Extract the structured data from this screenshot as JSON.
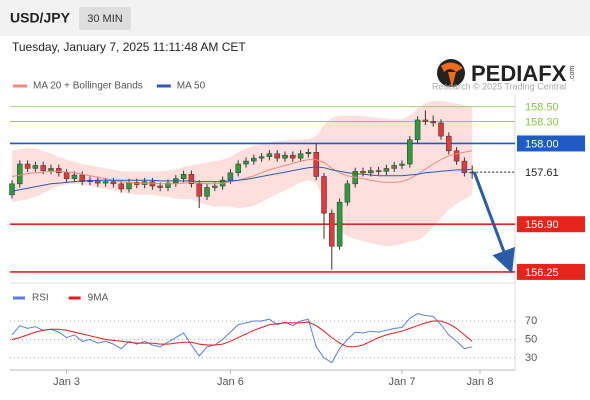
{
  "header": {
    "symbol": "USD/JPY",
    "interval": "30 MIN",
    "timestamp": "Tuesday, January 7, 2025 11:11:48 AM CET"
  },
  "branding": {
    "logo": "PEDIAFX",
    "logo_suffix": ".com",
    "credit": "Research © 2025 Trading Central"
  },
  "chart_data": [
    {
      "type": "candlestick",
      "up_color": "#2e9a3c",
      "down_color": "#e23a3a",
      "ylim": [
        156.14,
        158.66
      ],
      "open": [
        157.3,
        157.45,
        157.72,
        157.66,
        157.7,
        157.63,
        157.66,
        157.6,
        157.52,
        157.57,
        157.48,
        157.5,
        157.46,
        157.48,
        157.45,
        157.38,
        157.47,
        157.44,
        157.48,
        157.42,
        157.4,
        157.46,
        157.52,
        157.58,
        157.45,
        157.28,
        157.4,
        157.42,
        157.5,
        157.6,
        157.72,
        157.76,
        157.8,
        157.82,
        157.86,
        157.8,
        157.84,
        157.8,
        157.86,
        157.88,
        157.55,
        157.05,
        156.6,
        157.2,
        157.45,
        157.62,
        157.6,
        157.63,
        157.62,
        157.66,
        157.7,
        157.72,
        158.05,
        158.32,
        158.3,
        158.28,
        158.1,
        157.9,
        157.76,
        157.6,
        null
      ],
      "high": [
        157.5,
        157.77,
        157.77,
        157.75,
        157.75,
        157.71,
        157.71,
        157.65,
        157.62,
        157.62,
        157.55,
        157.55,
        157.53,
        157.53,
        157.5,
        157.52,
        157.52,
        157.53,
        157.53,
        157.47,
        157.51,
        157.57,
        157.63,
        157.63,
        157.5,
        157.45,
        157.47,
        157.55,
        157.65,
        157.77,
        157.81,
        157.85,
        157.87,
        157.91,
        157.91,
        157.89,
        157.89,
        157.91,
        157.93,
        158.0,
        157.6,
        157.1,
        157.25,
        157.5,
        157.67,
        157.67,
        157.68,
        157.68,
        157.71,
        157.75,
        157.77,
        158.1,
        158.37,
        158.45,
        158.38,
        158.33,
        158.15,
        157.95,
        157.81,
        157.7,
        null
      ],
      "low": [
        157.25,
        157.4,
        157.61,
        157.61,
        157.58,
        157.58,
        157.55,
        157.47,
        157.47,
        157.43,
        157.43,
        157.41,
        157.41,
        157.4,
        157.33,
        157.33,
        157.39,
        157.39,
        157.37,
        157.35,
        157.35,
        157.41,
        157.47,
        157.4,
        157.12,
        157.23,
        157.35,
        157.37,
        157.45,
        157.55,
        157.67,
        157.71,
        157.75,
        157.77,
        157.75,
        157.75,
        157.75,
        157.75,
        157.81,
        157.5,
        156.7,
        156.28,
        156.55,
        157.15,
        157.4,
        157.55,
        157.55,
        157.57,
        157.57,
        157.61,
        157.65,
        157.67,
        158.0,
        158.25,
        158.23,
        158.05,
        157.85,
        157.71,
        157.55,
        157.52,
        null
      ],
      "close": [
        157.45,
        157.72,
        157.66,
        157.7,
        157.63,
        157.66,
        157.6,
        157.52,
        157.57,
        157.48,
        157.5,
        157.46,
        157.48,
        157.45,
        157.38,
        157.47,
        157.44,
        157.48,
        157.42,
        157.4,
        157.46,
        157.52,
        157.58,
        157.45,
        157.28,
        157.4,
        157.42,
        157.5,
        157.6,
        157.72,
        157.76,
        157.8,
        157.82,
        157.86,
        157.8,
        157.84,
        157.8,
        157.86,
        157.88,
        157.55,
        157.05,
        156.6,
        157.2,
        157.45,
        157.62,
        157.6,
        157.63,
        157.62,
        157.66,
        157.7,
        157.72,
        158.05,
        158.32,
        158.3,
        158.28,
        158.1,
        157.9,
        157.76,
        157.6,
        157.61,
        null
      ],
      "series": [
        {
          "name": "MA 20 + Bollinger Bands",
          "color": "#f08a80",
          "band_color": "#fde0de",
          "values": [
            157.55,
            157.57,
            157.59,
            157.6,
            157.61,
            157.62,
            157.62,
            157.61,
            157.6,
            157.58,
            157.56,
            157.54,
            157.52,
            157.5,
            157.48,
            157.47,
            157.46,
            157.46,
            157.46,
            157.45,
            157.45,
            157.45,
            157.46,
            157.47,
            157.46,
            157.45,
            157.45,
            157.46,
            157.48,
            157.5,
            157.53,
            157.56,
            157.6,
            157.64,
            157.67,
            157.7,
            157.73,
            157.76,
            157.78,
            157.78,
            157.74,
            157.66,
            157.6,
            157.56,
            157.54,
            157.52,
            157.5,
            157.48,
            157.47,
            157.47,
            157.48,
            157.52,
            157.58,
            157.65,
            157.72,
            157.78,
            157.83,
            157.86,
            157.88,
            157.9,
            null
          ],
          "upper": [
            157.9,
            157.92,
            157.94,
            157.93,
            157.9,
            157.86,
            157.82,
            157.78,
            157.75,
            157.72,
            157.7,
            157.68,
            157.66,
            157.64,
            157.62,
            157.62,
            157.62,
            157.62,
            157.62,
            157.62,
            157.63,
            157.65,
            157.68,
            157.7,
            157.72,
            157.74,
            157.76,
            157.78,
            157.82,
            157.88,
            157.93,
            157.97,
            158.0,
            158.02,
            158.03,
            158.04,
            158.05,
            158.05,
            158.06,
            158.1,
            158.25,
            158.35,
            158.38,
            158.38,
            158.38,
            158.37,
            158.36,
            158.35,
            158.34,
            158.33,
            158.33,
            158.38,
            158.48,
            158.55,
            158.58,
            158.58,
            158.56,
            158.54,
            158.52,
            158.5,
            null
          ],
          "lower": [
            157.2,
            157.22,
            157.24,
            157.27,
            157.32,
            157.38,
            157.42,
            157.44,
            157.45,
            157.44,
            157.42,
            157.4,
            157.38,
            157.36,
            157.34,
            157.32,
            157.3,
            157.3,
            157.3,
            157.28,
            157.27,
            157.25,
            157.24,
            157.24,
            157.2,
            157.16,
            157.14,
            157.14,
            157.14,
            157.12,
            157.13,
            157.15,
            157.2,
            157.26,
            157.31,
            157.36,
            157.41,
            157.47,
            157.5,
            157.46,
            157.23,
            156.97,
            156.82,
            156.74,
            156.7,
            156.67,
            156.64,
            156.62,
            156.6,
            156.61,
            156.63,
            156.66,
            156.68,
            156.75,
            156.86,
            156.98,
            157.1,
            157.18,
            157.24,
            157.3,
            null
          ]
        },
        {
          "name": "MA 50",
          "color": "#2b5ca8",
          "values": [
            157.35,
            157.37,
            157.39,
            157.41,
            157.43,
            157.45,
            157.46,
            157.47,
            157.48,
            157.49,
            157.49,
            157.5,
            157.5,
            157.5,
            157.5,
            157.5,
            157.5,
            157.5,
            157.5,
            157.49,
            157.49,
            157.49,
            157.49,
            157.49,
            157.48,
            157.48,
            157.48,
            157.48,
            157.49,
            157.5,
            157.51,
            157.53,
            157.55,
            157.57,
            157.59,
            157.61,
            157.63,
            157.65,
            157.67,
            157.68,
            157.67,
            157.64,
            157.62,
            157.6,
            157.59,
            157.58,
            157.57,
            157.56,
            157.56,
            157.56,
            157.56,
            157.57,
            157.58,
            157.6,
            157.61,
            157.62,
            157.63,
            157.64,
            157.64,
            157.65,
            null
          ]
        }
      ],
      "levels": [
        {
          "value": 158.5,
          "label": "158.50",
          "color": "#8bc34a",
          "kind": "text"
        },
        {
          "value": 158.3,
          "label": "158.30",
          "color": "#8bc34a",
          "kind": "text"
        },
        {
          "value": 158.0,
          "label": "158.00",
          "color": "#1e5bc6",
          "kind": "box"
        },
        {
          "value": 157.61,
          "label": "157.61",
          "color": "#222222",
          "kind": "dotted"
        },
        {
          "value": 156.9,
          "label": "156.90",
          "color": "#e8231b",
          "kind": "box"
        },
        {
          "value": 156.25,
          "label": "156.25",
          "color": "#e8231b",
          "kind": "box"
        }
      ],
      "projection": {
        "from": 157.61,
        "to": 156.25,
        "color": "#2b5ca8"
      }
    },
    {
      "type": "line",
      "categories": [
        null,
        null,
        null,
        null,
        null,
        null,
        null,
        "Jan 3",
        null,
        null,
        null,
        null,
        null,
        null,
        null,
        null,
        null,
        null,
        null,
        null,
        null,
        null,
        null,
        null,
        null,
        null,
        null,
        null,
        "Jan 6",
        null,
        null,
        null,
        null,
        null,
        null,
        null,
        null,
        null,
        null,
        null,
        null,
        null,
        null,
        null,
        null,
        null,
        null,
        null,
        null,
        null,
        "Jan 7",
        null,
        null,
        null,
        null,
        null,
        null,
        null,
        null,
        null,
        "Jan 8"
      ],
      "ylim": [
        19,
        82
      ],
      "yticks": [
        30,
        50,
        70
      ],
      "grid": true,
      "series": [
        {
          "name": "RSI",
          "color": "#5b7fd6",
          "values": [
            55,
            65,
            62,
            64,
            60,
            61,
            58,
            52,
            55,
            48,
            50,
            46,
            48,
            45,
            40,
            48,
            45,
            48,
            44,
            42,
            47,
            52,
            57,
            44,
            32,
            42,
            44,
            50,
            58,
            66,
            68,
            70,
            70,
            72,
            66,
            69,
            65,
            70,
            72,
            42,
            30,
            25,
            40,
            50,
            58,
            57,
            59,
            58,
            60,
            62,
            63,
            73,
            78,
            76,
            75,
            66,
            55,
            48,
            40,
            42,
            null
          ]
        },
        {
          "name": "9MA",
          "color": "#e31b1b",
          "values": [
            50,
            52,
            55,
            58,
            60,
            61,
            61,
            60,
            58,
            56,
            54,
            52,
            50,
            49,
            48,
            47,
            46,
            46,
            46,
            45,
            45,
            46,
            47,
            47,
            45,
            44,
            44,
            45,
            48,
            52,
            56,
            60,
            63,
            66,
            67,
            68,
            68,
            68,
            69,
            65,
            59,
            52,
            46,
            42,
            42,
            44,
            48,
            52,
            55,
            57,
            59,
            62,
            65,
            68,
            70,
            70,
            67,
            62,
            55,
            48,
            null
          ]
        }
      ]
    }
  ]
}
